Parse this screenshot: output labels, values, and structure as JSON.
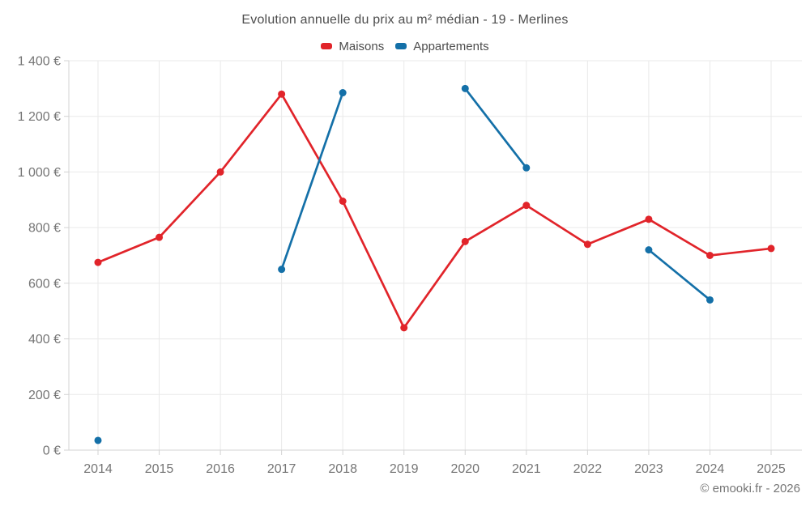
{
  "chart_data": {
    "type": "line",
    "title": "Evolution annuelle du prix au m² médian - 19 - Merlines",
    "x_labels": [
      "2014",
      "2015",
      "2016",
      "2017",
      "2018",
      "2019",
      "2020",
      "2021",
      "2022",
      "2023",
      "2024",
      "2025"
    ],
    "y_tick_labels": [
      "0 €",
      "200 €",
      "400 €",
      "600 €",
      "800 €",
      "1 000 €",
      "1 200 €",
      "1 400 €"
    ],
    "ylim": [
      0,
      1400
    ],
    "y_tick_step": 200,
    "grid": true,
    "legend_position": "top",
    "series": [
      {
        "name": "Maisons",
        "color": "#e1242a",
        "values": [
          675,
          765,
          1000,
          1280,
          895,
          440,
          750,
          880,
          740,
          830,
          700,
          725
        ]
      },
      {
        "name": "Appartements",
        "color": "#1470a8",
        "values": [
          35,
          null,
          null,
          650,
          1285,
          null,
          1300,
          1015,
          null,
          720,
          540,
          null
        ]
      }
    ]
  },
  "footer": {
    "copyright": "© emooki.fr - 2026"
  },
  "colors": {
    "title_text": "#4d4d4d",
    "axis_text": "#757575",
    "grid_line": "#e9e9e9",
    "axis_line": "#d3d3d3"
  }
}
